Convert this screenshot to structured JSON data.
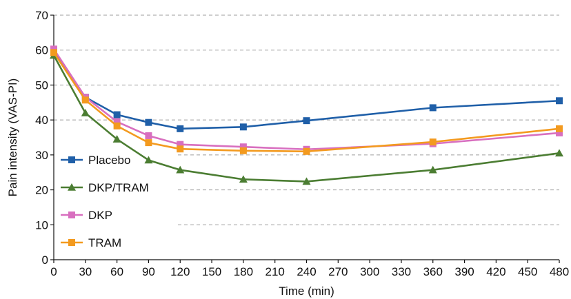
{
  "chart_data": {
    "type": "line",
    "title": "",
    "xlabel": "Time (min)",
    "ylabel": "Pain intensity (VAS-PI)",
    "x": [
      0,
      30,
      60,
      90,
      120,
      180,
      240,
      360,
      480
    ],
    "xticks": [
      0,
      30,
      60,
      90,
      120,
      150,
      180,
      210,
      240,
      270,
      300,
      330,
      360,
      390,
      420,
      450,
      480
    ],
    "yticks": [
      0,
      10,
      20,
      30,
      40,
      50,
      60,
      70
    ],
    "xlim": [
      0,
      480
    ],
    "ylim": [
      0,
      70
    ],
    "grid": "horizontal-dashed",
    "legend_position": "left",
    "series": [
      {
        "name": "Placebo",
        "color": "#1f5fa8",
        "marker": "square",
        "values": [
          59.5,
          46.5,
          41.5,
          39.3,
          37.5,
          38.0,
          39.8,
          43.5,
          45.5
        ]
      },
      {
        "name": "DKP/TRAM",
        "color": "#4b7d32",
        "marker": "triangle",
        "values": [
          58.5,
          42.0,
          34.5,
          28.5,
          25.7,
          23.0,
          22.4,
          25.7,
          30.5
        ]
      },
      {
        "name": "DKP",
        "color": "#d86fbf",
        "marker": "square",
        "values": [
          60.3,
          46.5,
          39.5,
          35.5,
          33.0,
          32.3,
          31.6,
          33.2,
          36.3
        ]
      },
      {
        "name": "TRAM",
        "color": "#f39a1f",
        "marker": "square",
        "values": [
          59.3,
          45.7,
          38.3,
          33.5,
          31.7,
          31.2,
          31.0,
          33.7,
          37.5
        ]
      }
    ]
  }
}
